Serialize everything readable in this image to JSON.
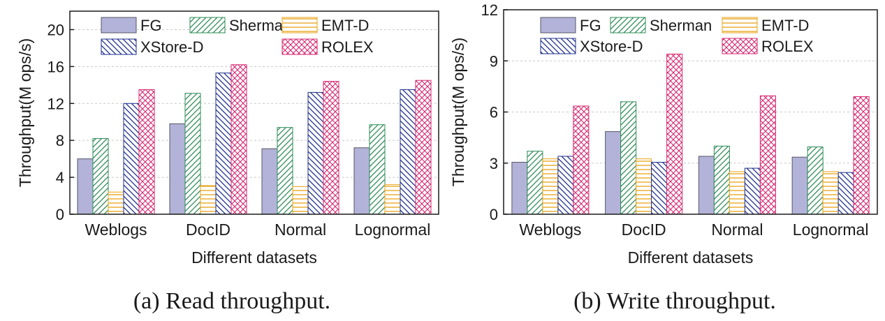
{
  "palette": {
    "FG": "#b3b3d9",
    "Sherman": "#2e8b57",
    "EMT-D": "#e8a317",
    "XStore-D": "#1c2e8c",
    "ROLEX": "#d6246e"
  },
  "chart_data": [
    {
      "type": "bar",
      "caption": "(a) Read throughput.",
      "xlabel": "Different datasets",
      "ylabel": "Throughput(M ops/s)",
      "categories": [
        "Weblogs",
        "DocID",
        "Normal",
        "Lognormal"
      ],
      "ylim": [
        0,
        22
      ],
      "yticks": [
        0,
        4,
        8,
        12,
        16,
        20
      ],
      "legend_position": "top",
      "grid": "horizontal dashed",
      "series": [
        {
          "name": "FG",
          "pattern": "solid",
          "values": [
            6.0,
            9.8,
            7.1,
            7.2
          ]
        },
        {
          "name": "Sherman",
          "pattern": "diag-up",
          "values": [
            8.2,
            13.1,
            9.4,
            9.7
          ]
        },
        {
          "name": "EMT-D",
          "pattern": "horizontal",
          "values": [
            2.4,
            3.1,
            3.0,
            3.2
          ]
        },
        {
          "name": "XStore-D",
          "pattern": "diag-down",
          "values": [
            12.0,
            15.3,
            13.2,
            13.5
          ]
        },
        {
          "name": "ROLEX",
          "pattern": "crosshatch",
          "values": [
            13.5,
            16.2,
            14.4,
            14.5
          ]
        }
      ]
    },
    {
      "type": "bar",
      "caption": "(b) Write throughput.",
      "xlabel": "Different datasets",
      "ylabel": "Throughput(M ops/s)",
      "categories": [
        "Weblogs",
        "DocID",
        "Normal",
        "Lognormal"
      ],
      "ylim": [
        0,
        12
      ],
      "yticks": [
        0,
        3,
        6,
        9,
        12
      ],
      "legend_position": "top",
      "grid": "horizontal dashed",
      "series": [
        {
          "name": "FG",
          "pattern": "solid",
          "values": [
            3.05,
            4.85,
            3.4,
            3.35
          ]
        },
        {
          "name": "Sherman",
          "pattern": "diag-up",
          "values": [
            3.7,
            6.6,
            4.0,
            3.95
          ]
        },
        {
          "name": "EMT-D",
          "pattern": "horizontal",
          "values": [
            3.25,
            3.25,
            2.5,
            2.5
          ]
        },
        {
          "name": "XStore-D",
          "pattern": "diag-down",
          "values": [
            3.4,
            3.05,
            2.7,
            2.45
          ]
        },
        {
          "name": "ROLEX",
          "pattern": "crosshatch",
          "values": [
            6.35,
            9.4,
            6.95,
            6.9
          ]
        }
      ]
    }
  ]
}
